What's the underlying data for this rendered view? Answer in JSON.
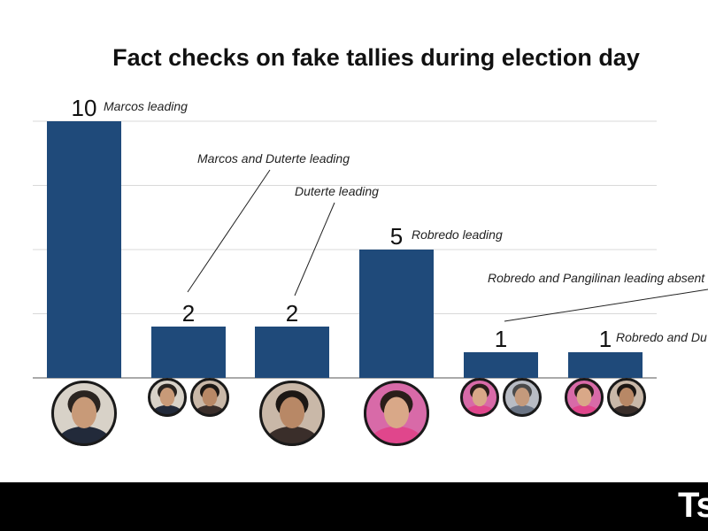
{
  "chart_data": {
    "type": "bar",
    "title": "Fact checks on fake tallies during election day",
    "categories": [
      "Marcos leading",
      "Marcos and Duterte leading",
      "Duterte leading",
      "Robredo leading",
      "Robredo and Pangilinan leading absent",
      "Robredo and Du"
    ],
    "values": [
      10,
      2,
      2,
      5,
      1,
      1
    ],
    "xlabel": "",
    "ylabel": "",
    "ylim": [
      0,
      10
    ],
    "grid": true,
    "bar_color": "#1f4a7a",
    "grid_color": "#d9d9d9",
    "portraits": [
      [
        "portrait-marcos"
      ],
      [
        "portrait-marcos",
        "portrait-duterte"
      ],
      [
        "portrait-duterte"
      ],
      [
        "portrait-robredo"
      ],
      [
        "portrait-robredo",
        "portrait-pangilinan"
      ],
      [
        "portrait-robredo",
        "portrait-duterte"
      ]
    ],
    "portrait_colors": {
      "portrait-marcos": {
        "bg": "#d8d2c8",
        "skin": "#c89a78",
        "hair": "#2a2420",
        "shirt": "#222a3a"
      },
      "portrait-duterte": {
        "bg": "#c9b8a8",
        "skin": "#b88866",
        "hair": "#1c1714",
        "shirt": "#3a2e2a"
      },
      "portrait-robredo": {
        "bg": "#d86aa8",
        "skin": "#d9a888",
        "hair": "#2a1e1a",
        "shirt": "#e0468c"
      },
      "portrait-pangilinan": {
        "bg": "#b8bcc4",
        "skin": "#c49a7c",
        "hair": "#4a4a4a",
        "shirt": "#6a7484"
      }
    }
  },
  "footer": {
    "logo": "Ts"
  }
}
